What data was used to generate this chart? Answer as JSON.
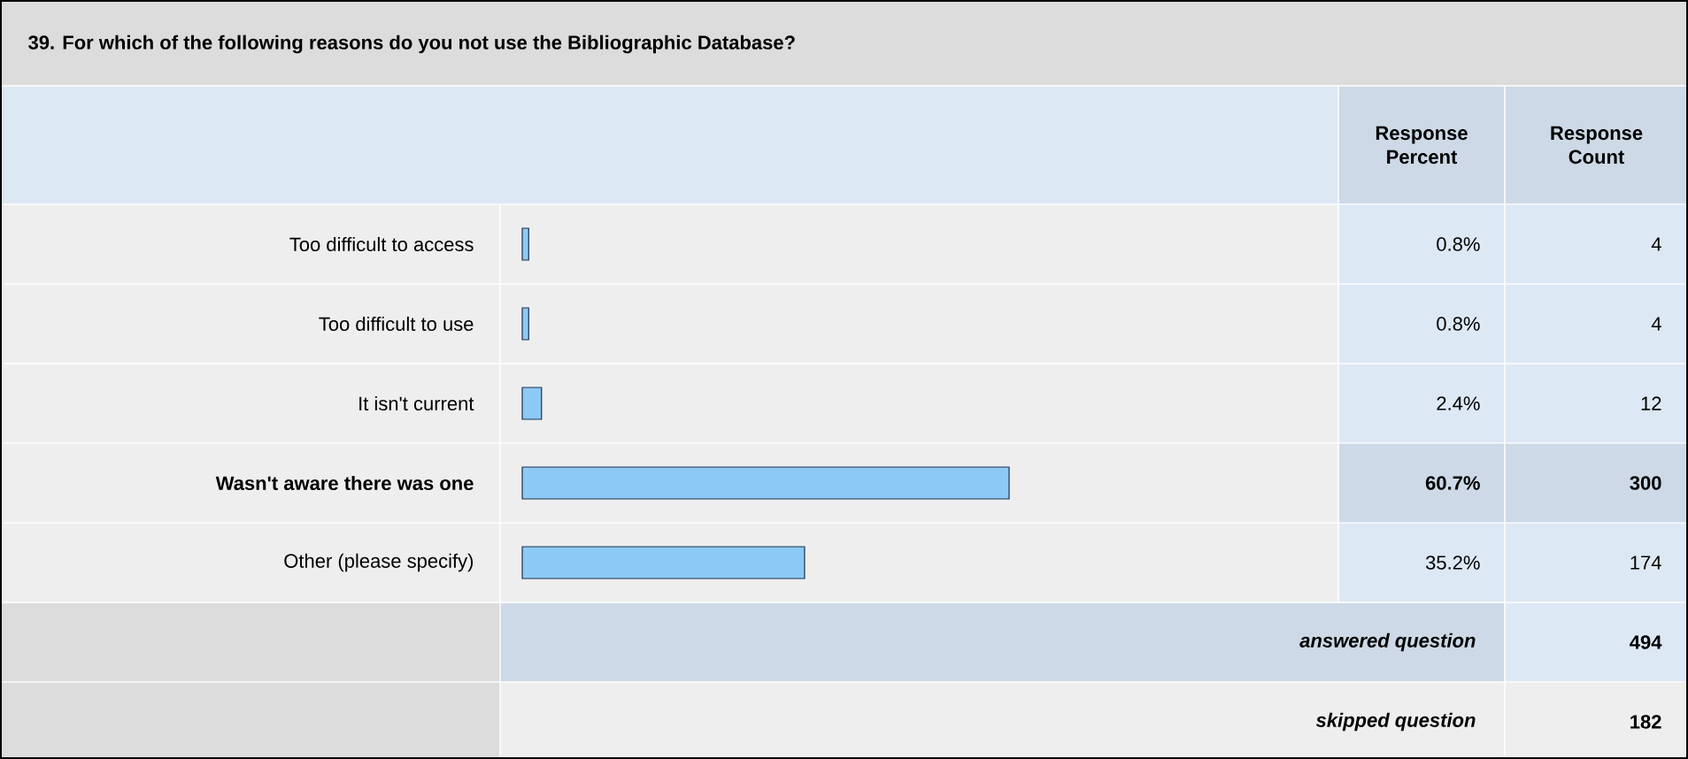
{
  "chart_data": {
    "type": "bar",
    "orientation": "horizontal",
    "title": "39. For which of the following reasons do you not use the Bibliographic Database?",
    "categories": [
      "Too difficult to access",
      "Too difficult to use",
      "It isn't current",
      "Wasn't aware there was one",
      "Other (please specify)"
    ],
    "values": [
      0.8,
      0.8,
      2.4,
      60.7,
      35.2
    ],
    "value_labels": [
      "0.8%",
      "0.8%",
      "2.4%",
      "60.7%",
      "35.2%"
    ],
    "color": "#8ccaf5",
    "annotations": [
      "Response Percent",
      "Response Count",
      "4",
      "4",
      "12",
      "300",
      "174",
      "answered question",
      "494",
      "skipped question",
      "182"
    ]
  }
}
